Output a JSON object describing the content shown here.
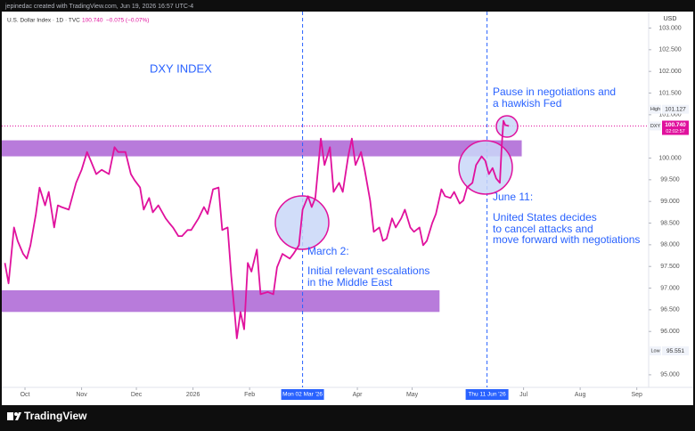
{
  "chart_data": {
    "type": "line",
    "header": "jepinedac created with TradingView.com, Jun 19, 2026 16:57 UTC-4",
    "symbol_info": "U.S. Dollar Index · 1D · TVC",
    "symbol_price": "100.740",
    "symbol_change": "−0.075 (−0.07%)",
    "currency": "USD",
    "brand": "TradingView",
    "title": "DXY INDEX",
    "notes": {
      "march": [
        "March 2:",
        "Initial relevant escalations",
        "in the Middle East"
      ],
      "pause": [
        "Pause in negotiations and",
        "a hawkish Fed"
      ],
      "june": [
        "June 11:",
        "United States decides",
        "to cancel attacks and",
        "move forward with negotiations"
      ]
    },
    "events": [
      {
        "value": 152,
        "label": "Mon 02 Mar '26"
      },
      {
        "value": 253,
        "label": "Thu 11 Jun '26"
      }
    ],
    "zones": [
      {
        "from": 100.04,
        "to": 100.41,
        "end": 272
      },
      {
        "from": 96.45,
        "to": 96.95,
        "end": 227
      }
    ],
    "zone_color": "#a04fcf",
    "event_color": "#2962ff",
    "high": {
      "label": "High",
      "value": 101.127
    },
    "low": {
      "label": "Low",
      "value": 95.551
    },
    "last": {
      "symbol": "DXY",
      "value": 100.74,
      "label": "100.740",
      "countdown": "02:02:57"
    },
    "xlim": [
      -12.7,
      341.5
    ],
    "ylim": [
      94.71,
      103.38
    ],
    "xticks": [
      {
        "value": 0,
        "label": "Oct"
      },
      {
        "value": 31,
        "label": "Nov"
      },
      {
        "value": 61,
        "label": "Dec"
      },
      {
        "value": 92,
        "label": "2026"
      },
      {
        "value": 123,
        "label": "Feb"
      },
      {
        "value": 182,
        "label": "Apr"
      },
      {
        "value": 212,
        "label": "May"
      },
      {
        "value": 273,
        "label": "Jul"
      },
      {
        "value": 304,
        "label": "Aug"
      },
      {
        "value": 335,
        "label": "Sep"
      }
    ],
    "yticks": [
      {
        "value": 95,
        "label": "95.000"
      },
      {
        "value": 96,
        "label": "96.000"
      },
      {
        "value": 96.5,
        "label": "96.500"
      },
      {
        "value": 97,
        "label": "97.000"
      },
      {
        "value": 97.5,
        "label": "97.500"
      },
      {
        "value": 98,
        "label": "98.000"
      },
      {
        "value": 98.5,
        "label": "98.500"
      },
      {
        "value": 99,
        "label": "99.000"
      },
      {
        "value": 99.5,
        "label": "99.500"
      },
      {
        "value": 100,
        "label": "100.000"
      },
      {
        "value": 101,
        "label": "101.000"
      },
      {
        "value": 101.5,
        "label": "101.500"
      },
      {
        "value": 102,
        "label": "102.000"
      },
      {
        "value": 102.5,
        "label": "102.500"
      },
      {
        "value": 103,
        "label": "103.000"
      }
    ],
    "series": [
      {
        "name": "U.S. Dollar Index",
        "color": "#e0119d",
        "x": [
          -11,
          -9,
          -6,
          -4,
          -1,
          1,
          3,
          6,
          8,
          11,
          13,
          16,
          18,
          20,
          24,
          28,
          31,
          34,
          36,
          39,
          42,
          46,
          49,
          51,
          55,
          58,
          60,
          63,
          65,
          68,
          70,
          73,
          77,
          79,
          81,
          84,
          86,
          89,
          91,
          95,
          98,
          100,
          103,
          106,
          108,
          111,
          113,
          115,
          116,
          118,
          120,
          122,
          124,
          127,
          129,
          133,
          136,
          138,
          141,
          145,
          147,
          150,
          152,
          155,
          157,
          159,
          162,
          164,
          167,
          169,
          172,
          174,
          177,
          179,
          181,
          184,
          186,
          189,
          191,
          194,
          196,
          198,
          201,
          203,
          206,
          208,
          211,
          213,
          216,
          218,
          220,
          223,
          225,
          228,
          230,
          233,
          235,
          238,
          240,
          242,
          245,
          247,
          250,
          252,
          254,
          256,
          258,
          260,
          261,
          262,
          263,
          265
        ],
        "values": [
          97.58,
          97.11,
          98.4,
          98.09,
          97.79,
          97.68,
          97.99,
          98.71,
          99.32,
          98.91,
          99.22,
          98.4,
          98.91,
          98.87,
          98.81,
          99.43,
          99.73,
          100.14,
          99.94,
          99.63,
          99.73,
          99.63,
          100.25,
          100.14,
          100.14,
          99.63,
          99.49,
          99.32,
          98.81,
          99.08,
          98.75,
          98.91,
          98.61,
          98.5,
          98.4,
          98.2,
          98.2,
          98.34,
          98.34,
          98.61,
          98.87,
          98.71,
          99.28,
          99.32,
          98.34,
          98.4,
          97.27,
          96.35,
          95.84,
          96.45,
          96.05,
          97.58,
          97.38,
          97.89,
          96.86,
          96.91,
          96.86,
          97.48,
          97.79,
          97.68,
          97.79,
          97.99,
          98.81,
          99.12,
          98.87,
          99.08,
          100.45,
          99.84,
          100.25,
          99.22,
          99.43,
          99.22,
          100.04,
          100.45,
          99.84,
          100.14,
          99.73,
          99.02,
          98.3,
          98.4,
          98.09,
          98.14,
          98.61,
          98.4,
          98.61,
          98.81,
          98.4,
          98.3,
          98.4,
          97.99,
          98.09,
          98.5,
          98.71,
          99.28,
          99.12,
          99.08,
          99.22,
          98.95,
          99.02,
          99.32,
          99.43,
          99.84,
          100.04,
          99.94,
          99.63,
          99.77,
          99.53,
          99.43,
          100.25,
          100.86,
          100.76,
          100.74
        ]
      }
    ]
  }
}
